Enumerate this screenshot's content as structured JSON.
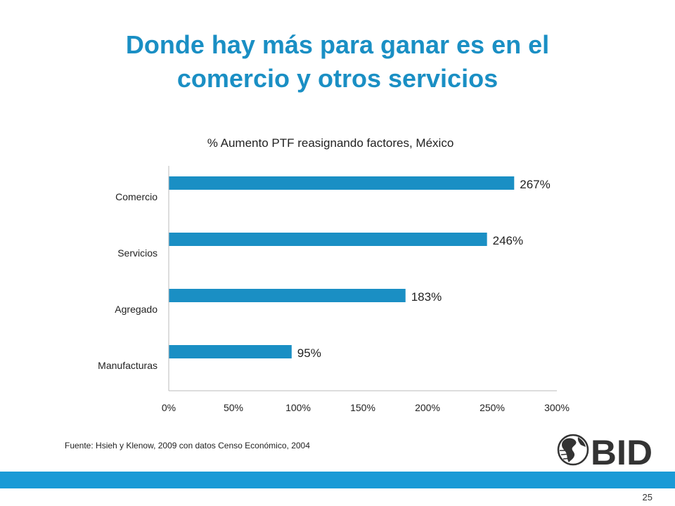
{
  "slide": {
    "title_line1": "Donde hay más para ganar es en el",
    "title_line2": "comercio y otros servicios",
    "source": "Fuente: Hsieh y Klenow, 2009 con datos Censo Económico, 2004",
    "page_number": "25",
    "logo_text": "BID"
  },
  "colors": {
    "title": "#1a8fc4",
    "bar": "#1a8fc4",
    "footer_bar": "#1a9ad6"
  },
  "chart_data": {
    "type": "bar",
    "orientation": "horizontal",
    "title": "% Aumento PTF reasignando factores, México",
    "categories": [
      "Comercio",
      "Servicios",
      "Agregado",
      "Manufacturas"
    ],
    "values": [
      267,
      246,
      183,
      95
    ],
    "data_labels": [
      "267%",
      "246%",
      "183%",
      "95%"
    ],
    "xlim": [
      0,
      300
    ],
    "xticks": [
      0,
      50,
      100,
      150,
      200,
      250,
      300
    ],
    "xtick_labels": [
      "0%",
      "50%",
      "100%",
      "150%",
      "200%",
      "250%",
      "300%"
    ],
    "grid": false,
    "legend": "none"
  }
}
